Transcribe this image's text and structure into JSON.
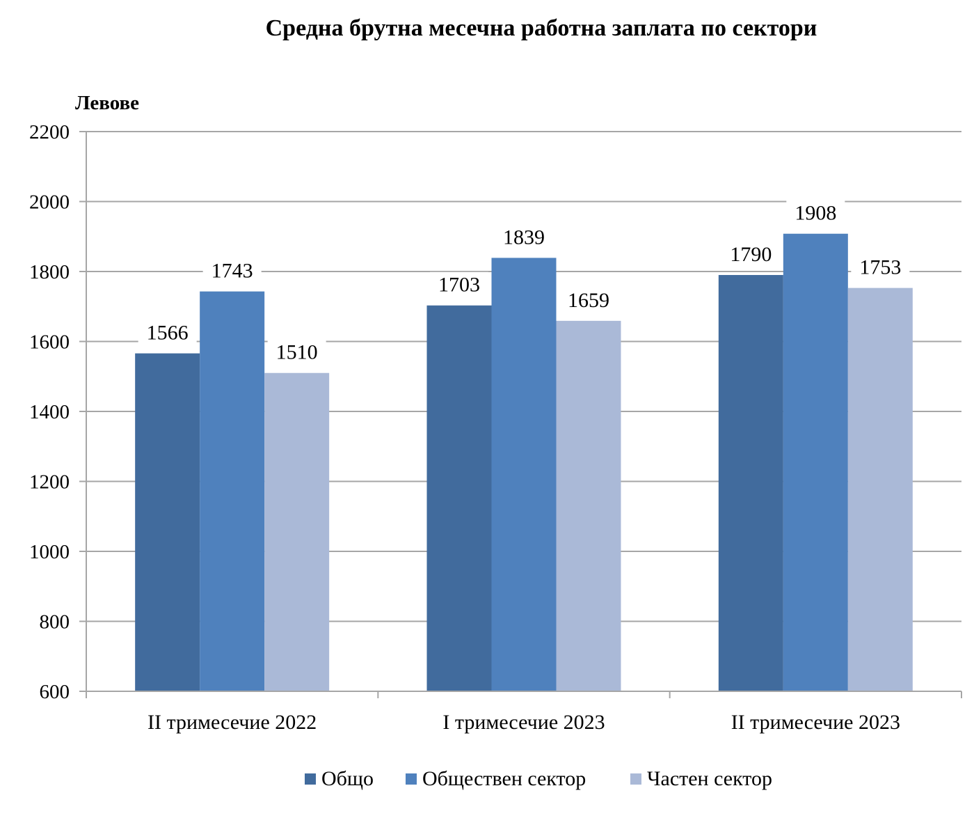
{
  "chart_data": {
    "type": "bar",
    "title": "Средна брутна месечна работна заплата по сектори",
    "ylabel": "Левове",
    "xlabel": "",
    "ylim": [
      600,
      2200
    ],
    "yticks": [
      600,
      800,
      1000,
      1200,
      1400,
      1600,
      1800,
      2000,
      2200
    ],
    "grid": true,
    "legend_position": "bottom",
    "categories": [
      "II тримесечие 2022",
      "I тримесечие 2023",
      "II тримесечие 2023"
    ],
    "series": [
      {
        "name": "Общо",
        "color": "#416B9D",
        "values": [
          1566,
          1703,
          1790
        ]
      },
      {
        "name": "Обществен сектор",
        "color": "#4F81BD",
        "values": [
          1743,
          1839,
          1908
        ]
      },
      {
        "name": "Частен сектор",
        "color": "#AAB9D7",
        "values": [
          1510,
          1659,
          1753
        ]
      }
    ]
  },
  "colors": {
    "grid": "#A6A6A6",
    "text": "#000000",
    "background": "#FFFFFF"
  }
}
